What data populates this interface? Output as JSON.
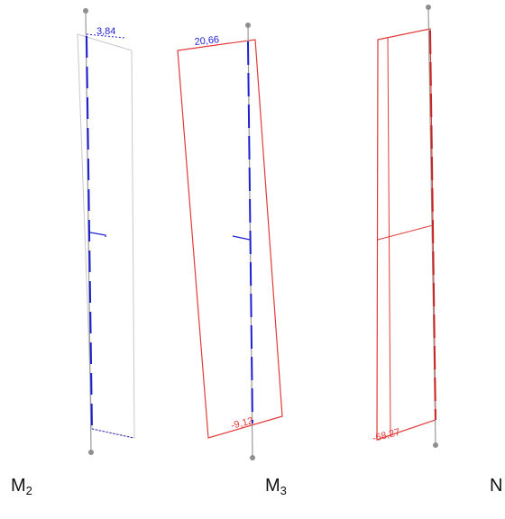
{
  "diagrams": [
    {
      "caption_letter": "M",
      "caption_sub": "2",
      "top_value": "3,84",
      "bottom_value": "",
      "color": "#1f1fd0",
      "outline_color": "#c8c8c8"
    },
    {
      "caption_letter": "M",
      "caption_sub": "3",
      "top_value": "20,66",
      "bottom_value": "-9,12",
      "color": "#1f1fd0",
      "outline_color": "#e23a3a"
    },
    {
      "caption_letter": "N",
      "caption_sub": "",
      "top_value": "",
      "bottom_value": "-68,27",
      "color": "#cc2222",
      "outline_color": "#e23a3a"
    }
  ],
  "member_color": "#999999",
  "node_color": "#8f8f8f"
}
